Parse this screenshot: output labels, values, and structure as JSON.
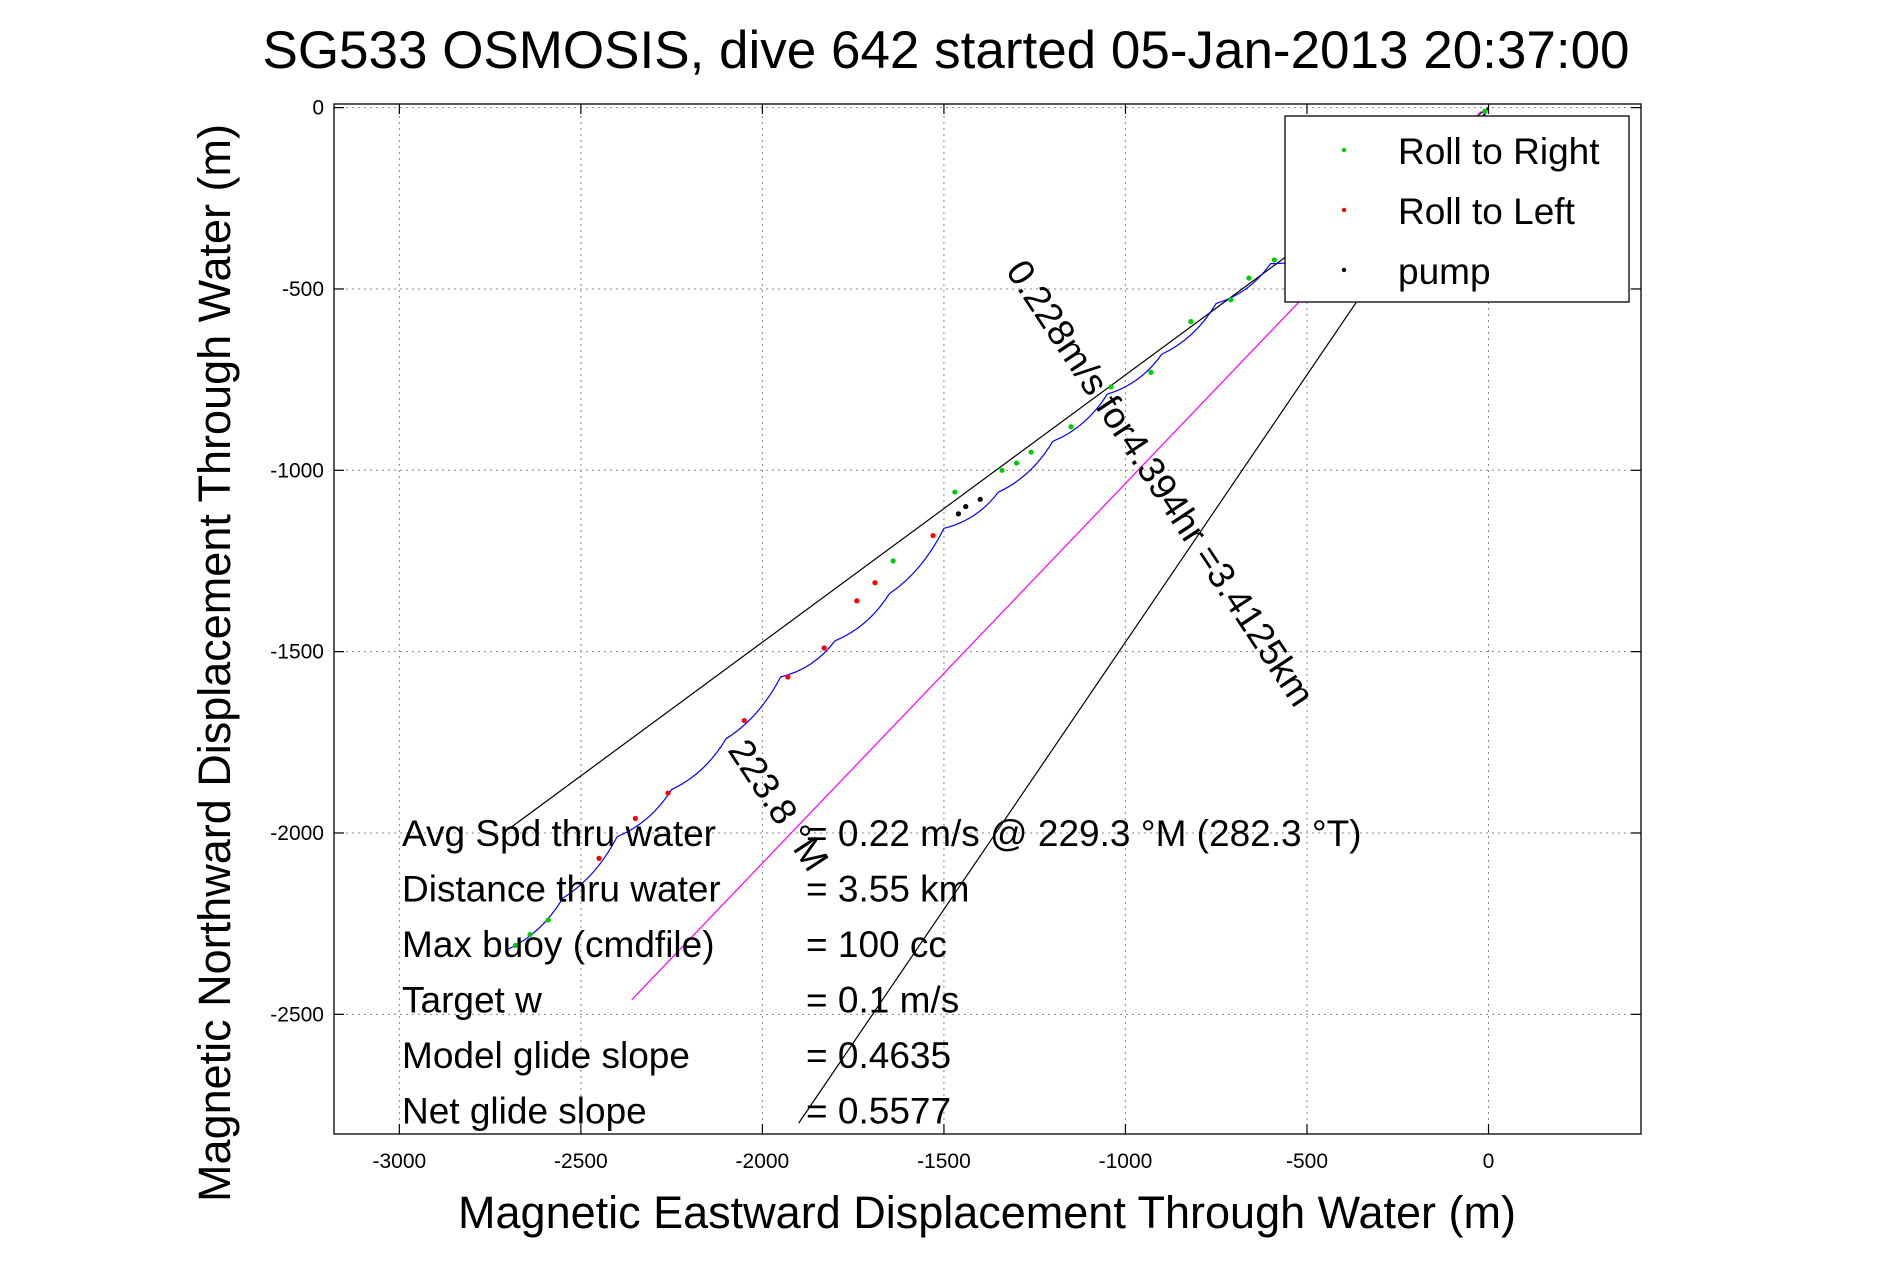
{
  "chart_data": {
    "type": "line",
    "title": "SG533 OSMOSIS, dive 642 started 05-Jan-2013 20:37:00",
    "xlabel": "Magnetic Eastward Displacement Through Water (m)",
    "ylabel": "Magnetic Northward Displacement Through Water (m)",
    "xlim": [
      -3180,
      420
    ],
    "ylim": [
      -2830,
      10
    ],
    "xticks": [
      -3000,
      -2500,
      -2000,
      -1500,
      -1000,
      -500,
      0
    ],
    "xtick_labels": [
      "-3000",
      "-2500",
      "-2000",
      "-1500",
      "-1000",
      "-500",
      "0"
    ],
    "yticks": [
      0,
      -500,
      -1000,
      -1500,
      -2000,
      -2500
    ],
    "ytick_labels": [
      "0",
      "-500",
      "-1000",
      "-1500",
      "-2000",
      "-2500"
    ],
    "grid": true,
    "legend_position": "top-right",
    "legend": [
      {
        "label": "Roll to Right",
        "color": "#00cc00"
      },
      {
        "label": "Roll to Left",
        "color": "#ff0000"
      },
      {
        "label": "pump",
        "color": "#000000"
      }
    ],
    "series": [
      {
        "color": "#0000ff",
        "x": [
          0,
          -150,
          -300,
          -450,
          -600,
          -750,
          -900,
          -1050,
          -1200,
          -1350,
          -1500,
          -1650,
          -1800,
          -1950,
          -2100,
          -2250,
          -2400,
          -2550,
          -2700
        ],
        "y": [
          0,
          -190,
          -330,
          -380,
          -430,
          -540,
          -680,
          -790,
          -920,
          -1060,
          -1160,
          -1340,
          -1470,
          -1570,
          -1740,
          -1880,
          -2010,
          -2180,
          -2320
        ]
      }
    ],
    "roll_right_points": {
      "x": [
        -10,
        -130,
        -340,
        -480,
        -590,
        -660,
        -710,
        -820,
        -930,
        -1040,
        -1150,
        -1260,
        -1300,
        -1340,
        -1470,
        -1640,
        -2590,
        -2640,
        -2680
      ],
      "y": [
        -10,
        -160,
        -300,
        -370,
        -420,
        -470,
        -530,
        -590,
        -730,
        -770,
        -880,
        -950,
        -980,
        -1000,
        -1060,
        -1250,
        -2240,
        -2280,
        -2310
      ]
    },
    "roll_left_points": {
      "x": [
        -1530,
        -1690,
        -1740,
        -1830,
        -1930,
        -2050,
        -2260,
        -2350,
        -2450
      ],
      "y": [
        -1180,
        -1310,
        -1360,
        -1490,
        -1570,
        -1690,
        -1890,
        -1960,
        -2070
      ]
    },
    "pump_points": {
      "x": [
        -1400,
        -1440,
        -1460
      ],
      "y": [
        -1080,
        -1100,
        -1120
      ]
    },
    "reference_lines": [
      {
        "color": "#000000",
        "x": [
          0,
          -2700
        ],
        "y": [
          0,
          -1990
        ]
      },
      {
        "color": "#000000",
        "x": [
          0,
          -1900
        ],
        "y": [
          0,
          -2800
        ]
      },
      {
        "color": "#ff00ff",
        "x": [
          -20,
          -2360
        ],
        "y": [
          -10,
          -2460
        ]
      }
    ],
    "annotations": {
      "heading_label": "223.8 °M",
      "speed_label": "0.228m/s for4.394hr =3.4125km",
      "stats": [
        {
          "label": "Avg Spd thru water",
          "value": "=  0.22 m/s @ 229.3 °M (282.3 °T)"
        },
        {
          "label": "Distance thru water",
          "value": "=  3.55 km"
        },
        {
          "label": "Max buoy (cmdfile)",
          "value": "= 100 cc"
        },
        {
          "label": "Target w",
          "value": "= 0.1 m/s"
        },
        {
          "label": "Model glide slope",
          "value": "= 0.4635"
        },
        {
          "label": "Net glide slope",
          "value": "= 0.5577"
        }
      ]
    }
  }
}
